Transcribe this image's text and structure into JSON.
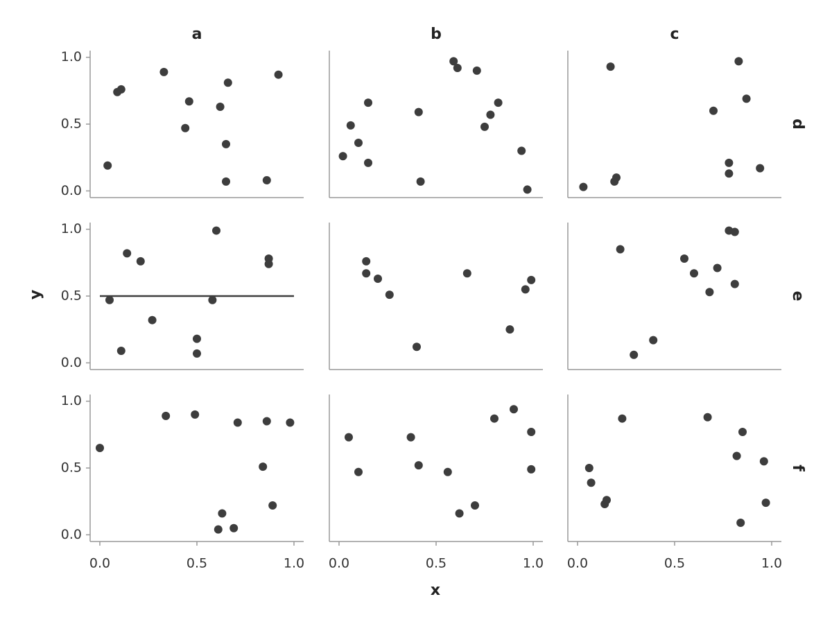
{
  "chart_data": {
    "type": "scatter",
    "xlabel": "x",
    "ylabel": "y",
    "columns": [
      "a",
      "b",
      "c"
    ],
    "rows": [
      "d",
      "e",
      "f"
    ],
    "xlim": [
      -0.05,
      1.05
    ],
    "ylim": [
      -0.05,
      1.05
    ],
    "xticks": [
      {
        "value": 0,
        "label": "0.0"
      },
      {
        "value": 0.5,
        "label": "0.5"
      },
      {
        "value": 1,
        "label": "1.0"
      }
    ],
    "yticks": [
      {
        "value": 0,
        "label": "0.0"
      },
      {
        "value": 0.5,
        "label": "0.5"
      },
      {
        "value": 1,
        "label": "1.0"
      }
    ],
    "color": "#3d3d3d",
    "panels": [
      [
        {
          "x": [
            0.04,
            0.09,
            0.11,
            0.33,
            0.46,
            0.44,
            0.62,
            0.66,
            0.65,
            0.65,
            0.92,
            0.86
          ],
          "y": [
            0.19,
            0.74,
            0.76,
            0.89,
            0.67,
            0.47,
            0.63,
            0.81,
            0.35,
            0.07,
            0.87,
            0.08
          ]
        },
        {
          "x": [
            0.02,
            0.06,
            0.1,
            0.15,
            0.15,
            0.41,
            0.42,
            0.59,
            0.61,
            0.71,
            0.75,
            0.78,
            0.82,
            0.94,
            0.97
          ],
          "y": [
            0.26,
            0.49,
            0.36,
            0.66,
            0.21,
            0.59,
            0.07,
            0.97,
            0.92,
            0.9,
            0.48,
            0.57,
            0.66,
            0.3,
            0.01
          ]
        },
        {
          "x": [
            0.03,
            0.17,
            0.19,
            0.2,
            0.7,
            0.83,
            0.87,
            0.78,
            0.78,
            0.94
          ],
          "y": [
            0.03,
            0.93,
            0.07,
            0.1,
            0.6,
            0.97,
            0.69,
            0.21,
            0.13,
            0.17
          ]
        }
      ],
      [
        {
          "x": [
            0.05,
            0.11,
            0.14,
            0.21,
            0.27,
            0.5,
            0.5,
            0.58,
            0.6,
            0.87,
            0.87
          ],
          "y": [
            0.47,
            0.09,
            0.82,
            0.76,
            0.32,
            0.18,
            0.07,
            0.47,
            0.99,
            0.78,
            0.74
          ],
          "lines": [
            {
              "x": [
                0,
                1
              ],
              "y": [
                0.5,
                0.5
              ]
            }
          ]
        },
        {
          "x": [
            0.14,
            0.14,
            0.2,
            0.26,
            0.4,
            0.66,
            0.88,
            0.96,
            0.99
          ],
          "y": [
            0.76,
            0.67,
            0.63,
            0.51,
            0.12,
            0.67,
            0.25,
            0.55,
            0.62
          ]
        },
        {
          "x": [
            0.22,
            0.29,
            0.39,
            0.55,
            0.6,
            0.68,
            0.72,
            0.78,
            0.81,
            0.81
          ],
          "y": [
            0.85,
            0.06,
            0.17,
            0.78,
            0.67,
            0.53,
            0.71,
            0.99,
            0.98,
            0.59
          ]
        }
      ],
      [
        {
          "x": [
            0.0,
            0.34,
            0.49,
            0.71,
            0.86,
            0.98,
            0.84,
            0.89,
            0.63,
            0.61,
            0.69
          ],
          "y": [
            0.65,
            0.89,
            0.9,
            0.84,
            0.85,
            0.84,
            0.51,
            0.22,
            0.16,
            0.04,
            0.05
          ]
        },
        {
          "x": [
            0.05,
            0.1,
            0.37,
            0.41,
            0.56,
            0.62,
            0.7,
            0.8,
            0.9,
            0.99,
            0.99
          ],
          "y": [
            0.73,
            0.47,
            0.73,
            0.52,
            0.47,
            0.16,
            0.22,
            0.87,
            0.94,
            0.77,
            0.49
          ]
        },
        {
          "x": [
            0.06,
            0.07,
            0.14,
            0.15,
            0.23,
            0.67,
            0.82,
            0.85,
            0.84,
            0.96,
            0.97
          ],
          "y": [
            0.5,
            0.39,
            0.23,
            0.26,
            0.87,
            0.88,
            0.59,
            0.77,
            0.09,
            0.55,
            0.24
          ]
        }
      ]
    ]
  }
}
